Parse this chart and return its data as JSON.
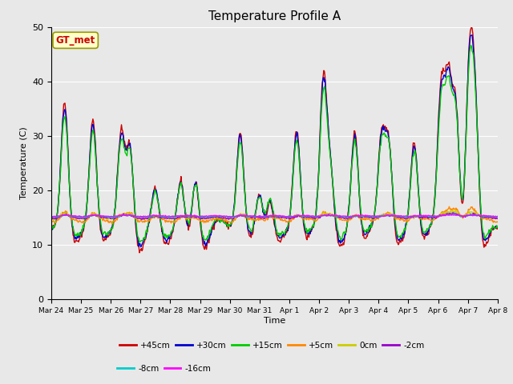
{
  "title": "Temperature Profile A",
  "xlabel": "Time",
  "ylabel": "Temperature (C)",
  "ylim": [
    0,
    50
  ],
  "annotation_text": "GT_met",
  "annotation_bg": "#ffffcc",
  "annotation_fg": "#cc0000",
  "bg_color": "#e8e8e8",
  "plot_bg": "#e8e8e8",
  "series": [
    {
      "label": "+45cm",
      "color": "#cc0000",
      "lw": 1.0
    },
    {
      "label": "+30cm",
      "color": "#0000cc",
      "lw": 1.0
    },
    {
      "label": "+15cm",
      "color": "#00cc00",
      "lw": 1.0
    },
    {
      "label": "+5cm",
      "color": "#ff8800",
      "lw": 1.0
    },
    {
      "label": "0cm",
      "color": "#cccc00",
      "lw": 1.0
    },
    {
      "label": "-2cm",
      "color": "#9900cc",
      "lw": 1.0
    },
    {
      "label": "-8cm",
      "color": "#00cccc",
      "lw": 1.0
    },
    {
      "label": "-16cm",
      "color": "#ff00ff",
      "lw": 1.0
    }
  ],
  "xtick_labels": [
    "Mar 24",
    "Mar 25",
    "Mar 26",
    "Mar 27",
    "Mar 28",
    "Mar 29",
    "Mar 30",
    "Mar 31",
    "Apr 1",
    "Apr 2",
    "Apr 3",
    "Apr 4",
    "Apr 5",
    "Apr 6",
    "Apr 7",
    "Apr 8"
  ],
  "n_days": 15,
  "pts_per_day": 48,
  "seed": 42
}
